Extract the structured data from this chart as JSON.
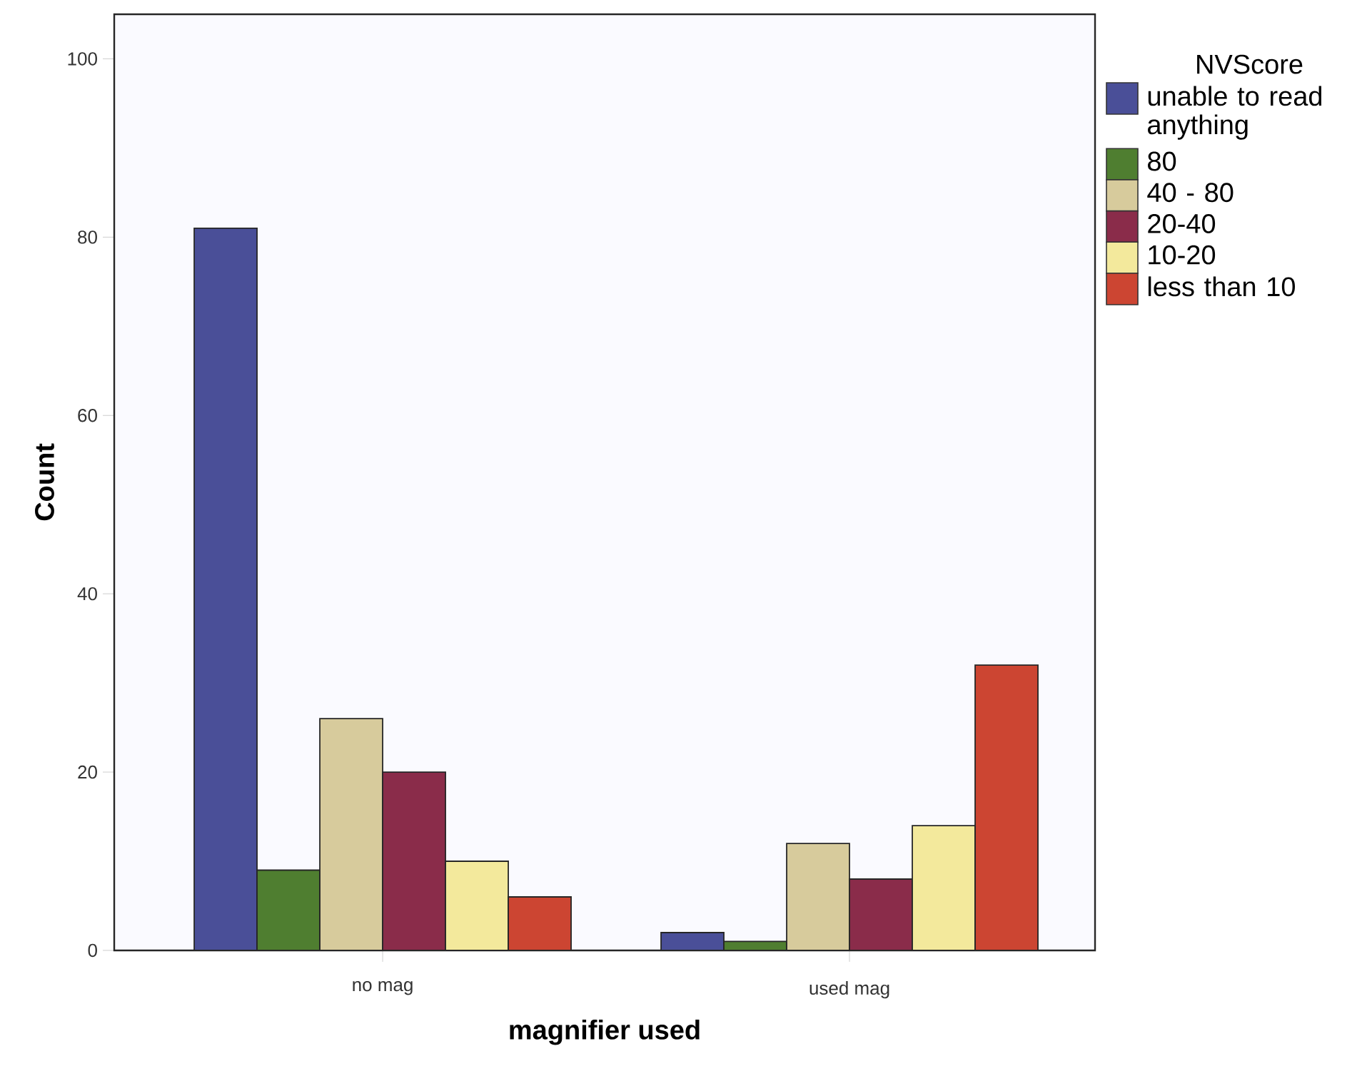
{
  "chart_data": {
    "type": "bar",
    "xlabel": "magnifier used",
    "ylabel": "Count",
    "legend_title": "NVScore",
    "categories": [
      "no mag",
      "used mag"
    ],
    "series": [
      {
        "name": "unable to read anything",
        "color": "#4a4f98",
        "values": [
          81,
          2
        ]
      },
      {
        "name": "80",
        "color": "#4f7e30",
        "values": [
          9,
          1
        ]
      },
      {
        "name": "40 - 80",
        "color": "#d7cb9c",
        "values": [
          26,
          12
        ]
      },
      {
        "name": "20-40",
        "color": "#8a2c4a",
        "values": [
          20,
          8
        ]
      },
      {
        "name": "10-20",
        "color": "#f3e99c",
        "values": [
          10,
          14
        ]
      },
      {
        "name": "less than 10",
        "color": "#cc4532",
        "values": [
          6,
          32
        ]
      }
    ],
    "ylim": [
      0,
      105
    ],
    "yticks": [
      0,
      20,
      40,
      60,
      80,
      100
    ],
    "grid": false,
    "legend": "right"
  }
}
